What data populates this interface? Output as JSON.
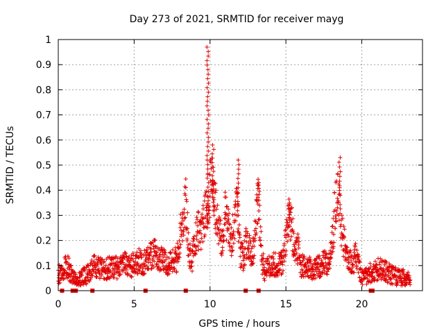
{
  "chart_data": {
    "type": "scatter",
    "title": "Day 273 of 2021, SRMTID for receiver mayg",
    "xlabel": "GPS time / hours",
    "ylabel": "SRMTID / TECUs",
    "xlim": [
      0,
      24
    ],
    "ylim": [
      0,
      1
    ],
    "xticks": [
      0,
      5,
      10,
      15,
      20
    ],
    "yticks": [
      0,
      0.1,
      0.2,
      0.3,
      0.4,
      0.5,
      0.6,
      0.7,
      0.8,
      0.9,
      1
    ],
    "xtick_labels": [
      "0",
      "5",
      "10",
      "15",
      "20"
    ],
    "ytick_labels": [
      "0",
      "0.1",
      "0.2",
      "0.3",
      "0.4",
      "0.5",
      "0.6",
      "0.7",
      "0.8",
      "0.9",
      "1"
    ],
    "grid": true,
    "marker": "plus",
    "color": "#e00000",
    "series": [
      {
        "name": "SRMTID",
        "profile_x": [
          0.0,
          0.3,
          0.5,
          0.7,
          0.9,
          1.2,
          1.5,
          1.8,
          2.1,
          2.4,
          2.7,
          3.0,
          3.3,
          3.6,
          3.9,
          4.2,
          4.5,
          4.8,
          5.1,
          5.4,
          5.7,
          6.0,
          6.3,
          6.6,
          6.9,
          7.2,
          7.5,
          7.8,
          8.0,
          8.2,
          8.4,
          8.6,
          8.8,
          9.0,
          9.2,
          9.4,
          9.6,
          9.8,
          10.0,
          10.2,
          10.4,
          10.6,
          10.8,
          11.0,
          11.2,
          11.4,
          11.6,
          11.8,
          12.0,
          12.2,
          12.4,
          12.6,
          12.8,
          13.0,
          13.2,
          13.4,
          13.6,
          13.8,
          14.0,
          14.2,
          14.4,
          14.6,
          14.8,
          15.0,
          15.2,
          15.4,
          15.6,
          15.8,
          16.0,
          16.3,
          16.6,
          16.9,
          17.2,
          17.5,
          17.8,
          18.0,
          18.2,
          18.4,
          18.6,
          18.8,
          19.0,
          19.2,
          19.4,
          19.6,
          19.8,
          20.0,
          20.3,
          20.6,
          20.9,
          21.2,
          21.5,
          21.8,
          22.1,
          22.4,
          22.7,
          23.0,
          23.2
        ],
        "profile_y": [
          0.06,
          0.08,
          0.1,
          0.09,
          0.06,
          0.04,
          0.05,
          0.06,
          0.07,
          0.1,
          0.09,
          0.08,
          0.09,
          0.1,
          0.09,
          0.1,
          0.11,
          0.1,
          0.11,
          0.12,
          0.11,
          0.13,
          0.15,
          0.13,
          0.12,
          0.11,
          0.13,
          0.12,
          0.2,
          0.3,
          0.35,
          0.15,
          0.12,
          0.18,
          0.24,
          0.22,
          0.28,
          0.34,
          0.4,
          0.45,
          0.3,
          0.22,
          0.2,
          0.32,
          0.25,
          0.2,
          0.25,
          0.35,
          0.15,
          0.12,
          0.2,
          0.18,
          0.14,
          0.25,
          0.38,
          0.12,
          0.08,
          0.1,
          0.09,
          0.11,
          0.1,
          0.12,
          0.11,
          0.2,
          0.3,
          0.25,
          0.15,
          0.17,
          0.1,
          0.09,
          0.1,
          0.08,
          0.1,
          0.12,
          0.11,
          0.15,
          0.3,
          0.4,
          0.28,
          0.2,
          0.15,
          0.12,
          0.1,
          0.14,
          0.1,
          0.05,
          0.06,
          0.07,
          0.08,
          0.09,
          0.08,
          0.07,
          0.06,
          0.05,
          0.05,
          0.04,
          0.04
        ],
        "spikes": [
          {
            "x": 9.85,
            "y_from": 0.25,
            "y_to": 0.97
          },
          {
            "x": 10.2,
            "y_from": 0.3,
            "y_to": 0.58
          },
          {
            "x": 11.85,
            "y_from": 0.3,
            "y_to": 0.52
          },
          {
            "x": 13.2,
            "y_from": 0.36,
            "y_to": 0.43
          },
          {
            "x": 15.2,
            "y_from": 0.28,
            "y_to": 0.35
          },
          {
            "x": 18.55,
            "y_from": 0.38,
            "y_to": 0.53
          }
        ],
        "gap_markers_x": [
          0.25,
          0.95,
          1.05,
          1.15,
          2.25,
          5.75,
          8.4,
          12.35,
          13.2,
          20.6,
          20.7
        ]
      }
    ]
  }
}
